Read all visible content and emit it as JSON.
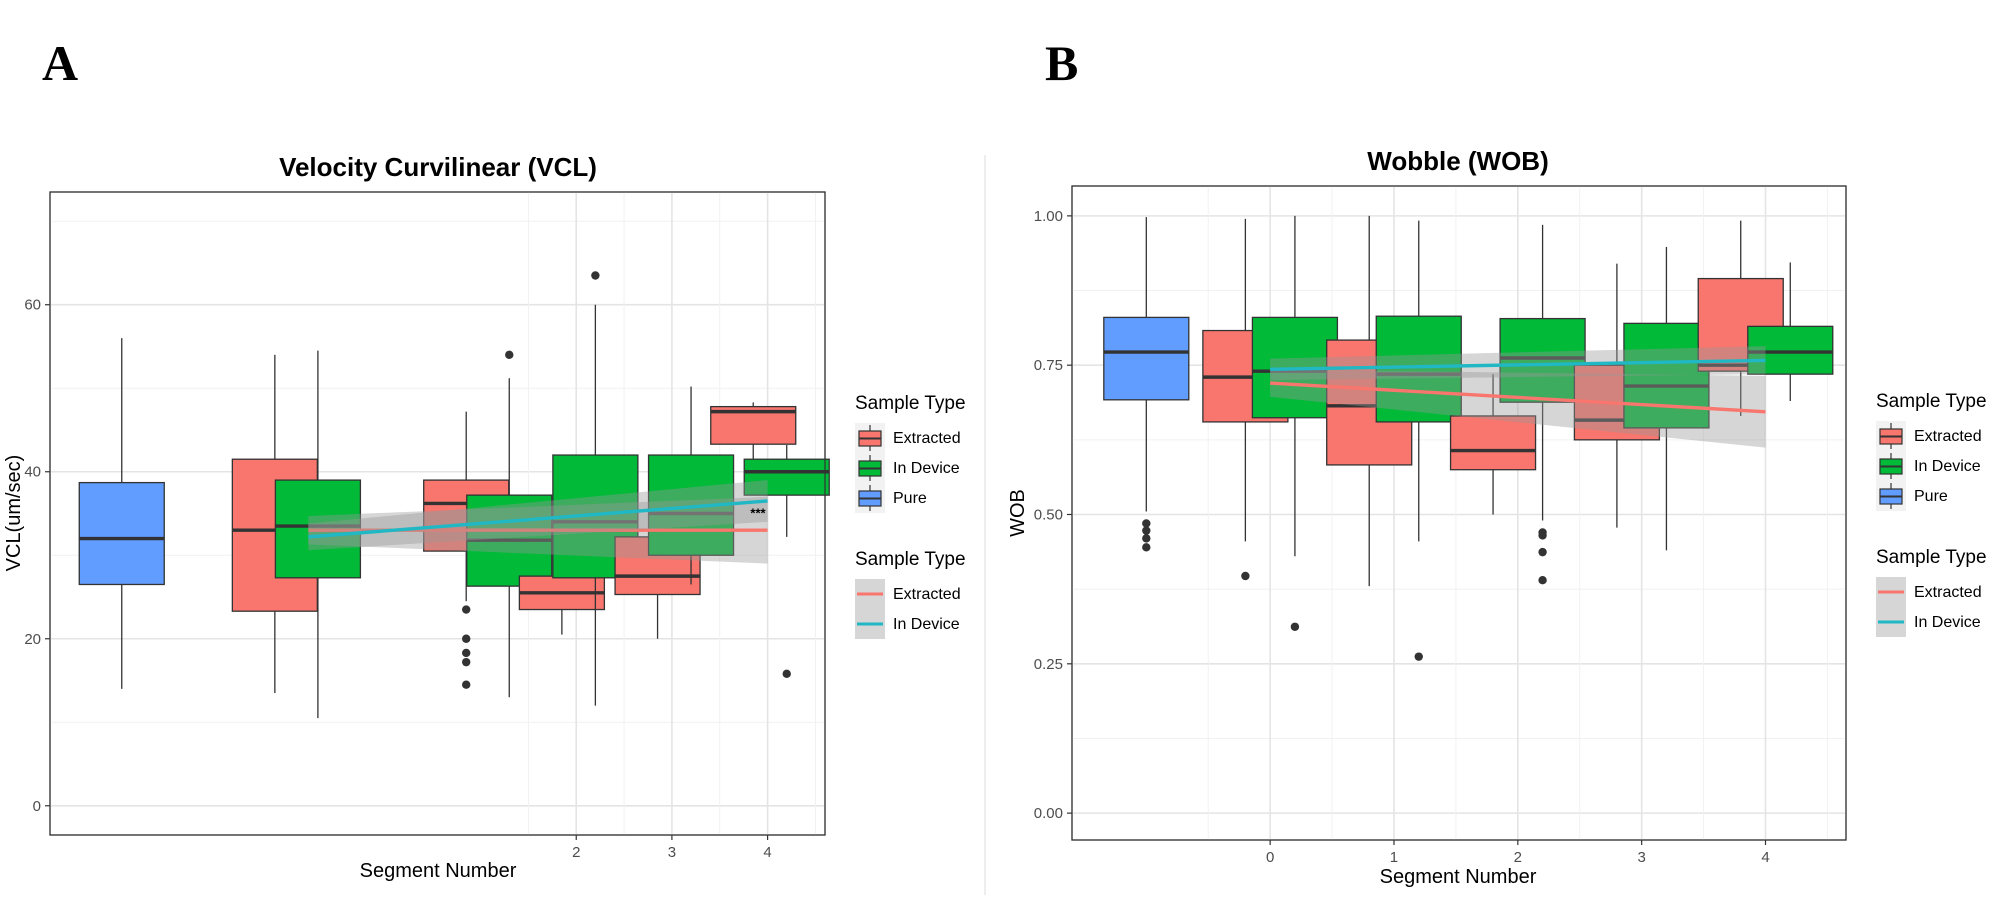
{
  "chart_data": [
    {
      "panel": "A",
      "type": "box",
      "title": "Velocity Curvilinear (VCL)",
      "xlabel": "Segment Number",
      "ylabel": "VCL(um/sec)",
      "xlim": [
        -3.5,
        4.6
      ],
      "ylim": [
        -3.5,
        73.5
      ],
      "x_ticks": [
        2,
        3,
        4
      ],
      "y_ticks": [
        0,
        20,
        40,
        60
      ],
      "colors": {
        "Extracted": "#F8766D",
        "In Device": "#00BA38",
        "Pure": "#619CFF",
        "Extracted line": "#F8766D",
        "In Device line": "#1FB8C4"
      },
      "boxes": [
        {
          "group": "Pure",
          "x": -2.75,
          "q1": 26.5,
          "median": 32,
          "q3": 38.7,
          "whisker_low": 14,
          "whisker_high": 56,
          "outliers": []
        },
        {
          "group": "Extracted",
          "x": -1.15,
          "q1": 23.3,
          "median": 33,
          "q3": 41.5,
          "whisker_low": 13.5,
          "whisker_high": 54,
          "outliers": []
        },
        {
          "group": "In Device",
          "x": -0.7,
          "q1": 27.3,
          "median": 33.5,
          "q3": 39,
          "whisker_low": 10.5,
          "whisker_high": 54.5,
          "outliers": []
        },
        {
          "group": "Extracted",
          "x": 0.85,
          "q1": 30.5,
          "median": 36.2,
          "q3": 39,
          "whisker_low": 24.5,
          "whisker_high": 47.2,
          "outliers": [
            23.5,
            20,
            18.3,
            17.2,
            14.5
          ]
        },
        {
          "group": "In Device",
          "x": 1.3,
          "q1": 26.3,
          "median": 31.8,
          "q3": 37.2,
          "whisker_low": 13,
          "whisker_high": 51.2,
          "outliers": [
            54
          ]
        },
        {
          "group": "Extracted",
          "x": 1.85,
          "q1": 23.5,
          "median": 25.5,
          "q3": 27.5,
          "whisker_low": 20.5,
          "whisker_high": 29.5,
          "outliers": []
        },
        {
          "group": "In Device",
          "x": 2.2,
          "q1": 27.3,
          "median": 34,
          "q3": 42,
          "whisker_low": 12,
          "whisker_high": 60,
          "outliers": [
            63.5
          ]
        },
        {
          "group": "Extracted",
          "x": 2.85,
          "q1": 25.3,
          "median": 27.5,
          "q3": 32.2,
          "whisker_low": 20,
          "whisker_high": 40,
          "outliers": []
        },
        {
          "group": "In Device",
          "x": 3.2,
          "q1": 30,
          "median": 35,
          "q3": 42,
          "whisker_low": 26.5,
          "whisker_high": 50.2,
          "outliers": []
        },
        {
          "group": "Extracted",
          "x": 3.85,
          "q1": 43.3,
          "median": 47.2,
          "q3": 47.8,
          "whisker_low": 37.5,
          "whisker_high": 48.3,
          "outliers": []
        },
        {
          "group": "In Device",
          "x": 4.2,
          "q1": 37.2,
          "median": 40,
          "q3": 41.5,
          "whisker_low": 32.2,
          "whisker_high": 43.2,
          "outliers": [
            15.8
          ]
        }
      ],
      "trend_lines": [
        {
          "name": "Extracted",
          "x": [
            -0.8,
            4.0
          ],
          "y": [
            33.0,
            33.0
          ],
          "ci_low": [
            31.3,
            29.0
          ],
          "ci_high": [
            34.7,
            37.0
          ]
        },
        {
          "name": "In Device",
          "x": [
            -0.8,
            4.0
          ],
          "y": [
            32.2,
            36.5
          ],
          "ci_low": [
            30.6,
            34.0
          ],
          "ci_high": [
            33.8,
            39.0
          ]
        }
      ],
      "annotations": [
        {
          "text": "***",
          "x": 3.9,
          "y": 34.5
        }
      ],
      "legends": [
        {
          "title": "Sample Type",
          "kind": "box",
          "entries": [
            "Extracted",
            "In Device",
            "Pure"
          ]
        },
        {
          "title": "Sample Type",
          "kind": "line",
          "entries": [
            "Extracted",
            "In Device"
          ]
        }
      ]
    },
    {
      "panel": "B",
      "type": "box",
      "title": "Wobble (WOB)",
      "xlabel": "Segment Number",
      "ylabel": "WOB",
      "xlim": [
        -1.6,
        4.65
      ],
      "ylim": [
        -0.045,
        1.05
      ],
      "x_ticks": [
        0,
        1,
        2,
        3,
        4
      ],
      "y_ticks": [
        0.0,
        0.25,
        0.5,
        0.75,
        1.0
      ],
      "y_tick_labels": [
        "0.00",
        "0.25",
        "0.50",
        "0.75",
        "1.00"
      ],
      "colors": {
        "Extracted": "#F8766D",
        "In Device": "#00BA38",
        "Pure": "#619CFF",
        "Extracted line": "#F8766D",
        "In Device line": "#1FB8C4"
      },
      "boxes": [
        {
          "group": "Pure",
          "x": -1.0,
          "q1": 0.692,
          "median": 0.772,
          "q3": 0.83,
          "whisker_low": 0.505,
          "whisker_high": 0.998,
          "outliers": [
            0.485,
            0.473,
            0.46,
            0.445
          ]
        },
        {
          "group": "Extracted",
          "x": -0.2,
          "q1": 0.655,
          "median": 0.73,
          "q3": 0.808,
          "whisker_low": 0.455,
          "whisker_high": 0.995,
          "outliers": [
            0.397
          ]
        },
        {
          "group": "In Device",
          "x": 0.2,
          "q1": 0.662,
          "median": 0.74,
          "q3": 0.83,
          "whisker_low": 0.43,
          "whisker_high": 1.0,
          "outliers": [
            0.312
          ]
        },
        {
          "group": "Extracted",
          "x": 0.8,
          "q1": 0.583,
          "median": 0.682,
          "q3": 0.792,
          "whisker_low": 0.38,
          "whisker_high": 1.0,
          "outliers": []
        },
        {
          "group": "In Device",
          "x": 1.2,
          "q1": 0.655,
          "median": 0.735,
          "q3": 0.832,
          "whisker_low": 0.455,
          "whisker_high": 0.992,
          "outliers": [
            0.262
          ]
        },
        {
          "group": "Extracted",
          "x": 1.8,
          "q1": 0.575,
          "median": 0.607,
          "q3": 0.665,
          "whisker_low": 0.5,
          "whisker_high": 0.735,
          "outliers": []
        },
        {
          "group": "In Device",
          "x": 2.2,
          "q1": 0.688,
          "median": 0.762,
          "q3": 0.828,
          "whisker_low": 0.49,
          "whisker_high": 0.985,
          "outliers": [
            0.47,
            0.465,
            0.437,
            0.39
          ]
        },
        {
          "group": "Extracted",
          "x": 2.8,
          "q1": 0.625,
          "median": 0.658,
          "q3": 0.75,
          "whisker_low": 0.478,
          "whisker_high": 0.92,
          "outliers": []
        },
        {
          "group": "In Device",
          "x": 3.2,
          "q1": 0.645,
          "median": 0.715,
          "q3": 0.82,
          "whisker_low": 0.44,
          "whisker_high": 0.948,
          "outliers": []
        },
        {
          "group": "Extracted",
          "x": 3.8,
          "q1": 0.74,
          "median": 0.75,
          "q3": 0.895,
          "whisker_low": 0.665,
          "whisker_high": 0.992,
          "outliers": []
        },
        {
          "group": "In Device",
          "x": 4.2,
          "q1": 0.735,
          "median": 0.772,
          "q3": 0.815,
          "whisker_low": 0.69,
          "whisker_high": 0.922,
          "outliers": []
        }
      ],
      "trend_lines": [
        {
          "name": "Extracted",
          "x": [
            0.0,
            4.0
          ],
          "y": [
            0.72,
            0.672
          ],
          "ci_low": [
            0.697,
            0.612
          ],
          "ci_high": [
            0.743,
            0.732
          ]
        },
        {
          "name": "In Device",
          "x": [
            0.0,
            4.0
          ],
          "y": [
            0.743,
            0.758
          ],
          "ci_low": [
            0.725,
            0.735
          ],
          "ci_high": [
            0.761,
            0.782
          ]
        }
      ],
      "annotations": [],
      "legends": [
        {
          "title": "Sample Type",
          "kind": "box",
          "entries": [
            "Extracted",
            "In Device",
            "Pure"
          ]
        },
        {
          "title": "Sample Type",
          "kind": "line",
          "entries": [
            "Extracted",
            "In Device"
          ]
        }
      ]
    }
  ]
}
